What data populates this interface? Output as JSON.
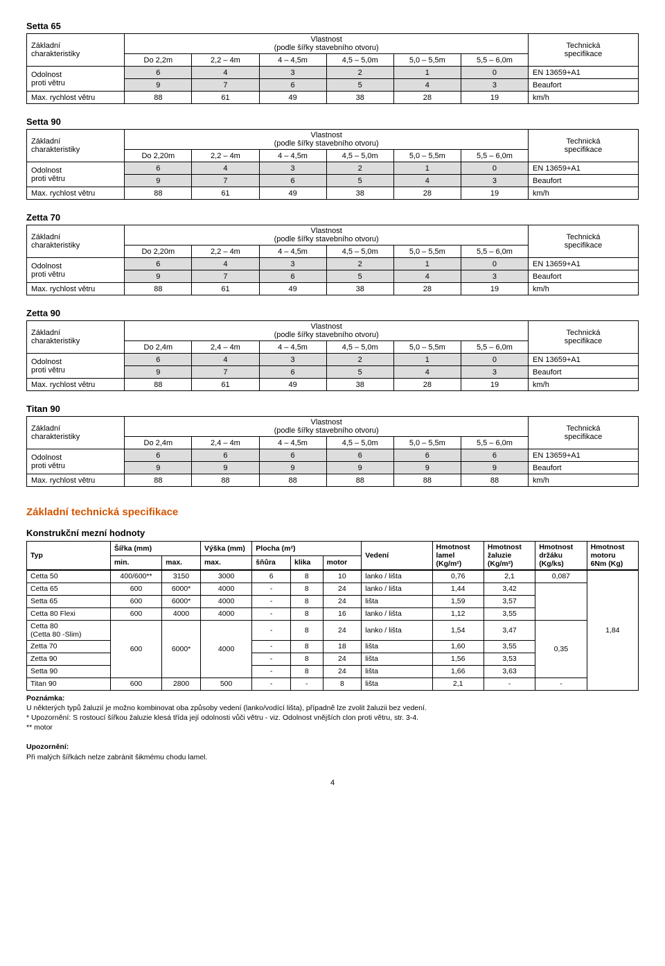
{
  "labels": {
    "zakladni": "Základní\ncharakteristiky",
    "vlastnost": "Vlastnost",
    "podle": "(podle šířky stavebního otvoru)",
    "technicka": "Technická\nspecifikace",
    "odolnost": "Odolnost",
    "proti": "proti větru",
    "maxrych": "Max. rychlost větru"
  },
  "windTables": [
    {
      "title": "Setta 65",
      "cols": [
        "Do 2,2m",
        "2,2 – 4m",
        "4 – 4,5m",
        "4,5 – 5,0m",
        "5,0 – 5,5m",
        "5,5 – 6,0m"
      ],
      "r1": [
        "6",
        "4",
        "3",
        "2",
        "1",
        "0",
        "EN 13659+A1"
      ],
      "r2": [
        "9",
        "7",
        "6",
        "5",
        "4",
        "3",
        "Beaufort"
      ],
      "r3": [
        "88",
        "61",
        "49",
        "38",
        "28",
        "19",
        "km/h"
      ]
    },
    {
      "title": "Setta 90",
      "cols": [
        "Do 2,20m",
        "2,2 – 4m",
        "4 – 4,5m",
        "4,5 – 5,0m",
        "5,0 – 5,5m",
        "5,5 – 6,0m"
      ],
      "r1": [
        "6",
        "4",
        "3",
        "2",
        "1",
        "0",
        "EN 13659+A1"
      ],
      "r2": [
        "9",
        "7",
        "6",
        "5",
        "4",
        "3",
        "Beaufort"
      ],
      "r3": [
        "88",
        "61",
        "49",
        "38",
        "28",
        "19",
        "km/h"
      ]
    },
    {
      "title": "Zetta 70",
      "cols": [
        "Do 2,20m",
        "2,2 – 4m",
        "4 – 4,5m",
        "4,5 – 5,0m",
        "5,0 – 5,5m",
        "5,5 – 6,0m"
      ],
      "r1": [
        "6",
        "4",
        "3",
        "2",
        "1",
        "0",
        "EN 13659+A1"
      ],
      "r2": [
        "9",
        "7",
        "6",
        "5",
        "4",
        "3",
        "Beaufort"
      ],
      "r3": [
        "88",
        "61",
        "49",
        "38",
        "28",
        "19",
        "km/h"
      ]
    },
    {
      "title": "Zetta 90",
      "cols": [
        "Do 2,4m",
        "2,4 – 4m",
        "4 – 4,5m",
        "4,5 – 5,0m",
        "5,0 – 5,5m",
        "5,5 – 6,0m"
      ],
      "r1": [
        "6",
        "4",
        "3",
        "2",
        "1",
        "0",
        "EN 13659+A1"
      ],
      "r2": [
        "9",
        "7",
        "6",
        "5",
        "4",
        "3",
        "Beaufort"
      ],
      "r3": [
        "88",
        "61",
        "49",
        "38",
        "28",
        "19",
        "km/h"
      ]
    },
    {
      "title": "Titan 90",
      "cols": [
        "Do 2,4m",
        "2,4 – 4m",
        "4 – 4,5m",
        "4,5 – 5,0m",
        "5,0 – 5,5m",
        "5,5 – 6,0m"
      ],
      "r1": [
        "6",
        "6",
        "6",
        "6",
        "6",
        "6",
        "EN 13659+A1"
      ],
      "r2": [
        "9",
        "9",
        "9",
        "9",
        "9",
        "9",
        "Beaufort"
      ],
      "r3": [
        "88",
        "88",
        "88",
        "88",
        "88",
        "88",
        "km/h"
      ]
    }
  ],
  "bigHeading": "Základní technická specifikace",
  "subHeading": "Konstrukční mezní hodnoty",
  "specHeader": {
    "typ": "Typ",
    "sirka": "Šířka (mm)",
    "vyska": "Výška (mm)",
    "plocha": "Plocha (m²)",
    "min": "min.",
    "max": "max.",
    "snura": "šňůra",
    "klika": "klika",
    "motor": "motor",
    "vedeni": "Vedení",
    "hl": "Hmotnost\nlamel\n(Kg/m²)",
    "hz": "Hmotnost\nžaluzie\n(Kg/m²)",
    "hd": "Hmotnost\ndržáku\n(Kg/ks)",
    "hm": "Hmotnost\nmotoru\n6Nm (Kg)"
  },
  "specRows": [
    {
      "typ": "Cetta 50",
      "smin": "400/600**",
      "smax": "3150",
      "vmax": "3000",
      "sn": "6",
      "kl": "8",
      "mo": "10",
      "ved": "lanko / lišta",
      "hl": "0,76",
      "hz": "2,1",
      "hd": "0,087"
    },
    {
      "typ": "Cetta 65",
      "smin": "600",
      "smax": "6000*",
      "vmax": "4000",
      "sn": "-",
      "kl": "8",
      "mo": "24",
      "ved": "lanko / lišta",
      "hl": "1,44",
      "hz": "3,42"
    },
    {
      "typ": "Setta 65",
      "smin": "600",
      "smax": "6000*",
      "vmax": "4000",
      "sn": "-",
      "kl": "8",
      "mo": "24",
      "ved": "lišta",
      "hl": "1,59",
      "hz": "3,57"
    },
    {
      "typ": "Cetta 80 Flexi",
      "smin": "600",
      "smax": "4000",
      "vmax": "4000",
      "sn": "-",
      "kl": "8",
      "mo": "16",
      "ved": "lanko / lišta",
      "hl": "1,12",
      "hz": "3,55"
    },
    {
      "typ": "Cetta 80\n(Cetta 80 -Slim)",
      "sn": "-",
      "kl": "8",
      "mo": "24",
      "ved": "lanko / lišta",
      "hl": "1,54",
      "hz": "3,47",
      "hd": "0,35"
    },
    {
      "typ": "Zetta 70",
      "smin": "600",
      "smax": "6000*",
      "vmax": "4000",
      "sn": "-",
      "kl": "8",
      "mo": "18",
      "ved": "lišta",
      "hl": "1,60",
      "hz": "3,55"
    },
    {
      "typ": "Zetta 90",
      "sn": "-",
      "kl": "8",
      "mo": "24",
      "ved": "lišta",
      "hl": "1,56",
      "hz": "3,53"
    },
    {
      "typ": "Setta 90",
      "sn": "-",
      "kl": "8",
      "mo": "24",
      "ved": "lišta",
      "hl": "1,66",
      "hz": "3,63"
    },
    {
      "typ": "Titan 90",
      "smin": "600",
      "smax": "2800",
      "vmax": "500",
      "sn": "-",
      "kl": "-",
      "mo": "8",
      "ved": "lišta",
      "hl": "2,1",
      "hz": "-",
      "hd": "-"
    }
  ],
  "specMerged": {
    "hm": "1,84"
  },
  "notes": {
    "poz": "Poznámka:",
    "l1": "U některých typů žaluzií je možno kombinovat oba způsoby vedení (lanko/vodící lišta), případně lze zvolit žaluzii bez vedení.",
    "l2": "* Upozornění: S rostoucí šířkou žaluzie klesá třída její odolnosti vůči větru - viz. Odolnost vnějších clon proti větru, str. 3-4.",
    "l3": "** motor",
    "upoz": "Upozornění:",
    "l4": "Při malých šířkách nelze zabránit šikmému chodu lamel."
  },
  "pageNum": "4"
}
